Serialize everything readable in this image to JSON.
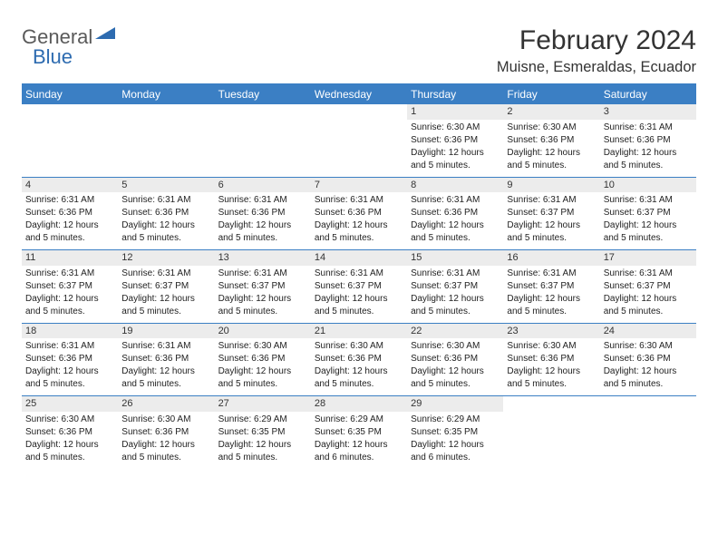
{
  "logo": {
    "text1": "General",
    "text2": "Blue"
  },
  "title": "February 2024",
  "location": "Muisne, Esmeraldas, Ecuador",
  "colors": {
    "brand_blue": "#3b7fc4",
    "header_bg": "#3b7fc4",
    "header_text": "#ffffff",
    "daynum_bg": "#ececec",
    "body_text": "#222222",
    "logo_gray": "#5a5a5a",
    "logo_blue": "#2d6bb0"
  },
  "day_names": [
    "Sunday",
    "Monday",
    "Tuesday",
    "Wednesday",
    "Thursday",
    "Friday",
    "Saturday"
  ],
  "weeks": [
    {
      "nums": [
        "",
        "",
        "",
        "",
        "1",
        "2",
        "3"
      ],
      "details": [
        "",
        "",
        "",
        "",
        "Sunrise: 6:30 AM\nSunset: 6:36 PM\nDaylight: 12 hours and 5 minutes.",
        "Sunrise: 6:30 AM\nSunset: 6:36 PM\nDaylight: 12 hours and 5 minutes.",
        "Sunrise: 6:31 AM\nSunset: 6:36 PM\nDaylight: 12 hours and 5 minutes."
      ]
    },
    {
      "nums": [
        "4",
        "5",
        "6",
        "7",
        "8",
        "9",
        "10"
      ],
      "details": [
        "Sunrise: 6:31 AM\nSunset: 6:36 PM\nDaylight: 12 hours and 5 minutes.",
        "Sunrise: 6:31 AM\nSunset: 6:36 PM\nDaylight: 12 hours and 5 minutes.",
        "Sunrise: 6:31 AM\nSunset: 6:36 PM\nDaylight: 12 hours and 5 minutes.",
        "Sunrise: 6:31 AM\nSunset: 6:36 PM\nDaylight: 12 hours and 5 minutes.",
        "Sunrise: 6:31 AM\nSunset: 6:36 PM\nDaylight: 12 hours and 5 minutes.",
        "Sunrise: 6:31 AM\nSunset: 6:37 PM\nDaylight: 12 hours and 5 minutes.",
        "Sunrise: 6:31 AM\nSunset: 6:37 PM\nDaylight: 12 hours and 5 minutes."
      ]
    },
    {
      "nums": [
        "11",
        "12",
        "13",
        "14",
        "15",
        "16",
        "17"
      ],
      "details": [
        "Sunrise: 6:31 AM\nSunset: 6:37 PM\nDaylight: 12 hours and 5 minutes.",
        "Sunrise: 6:31 AM\nSunset: 6:37 PM\nDaylight: 12 hours and 5 minutes.",
        "Sunrise: 6:31 AM\nSunset: 6:37 PM\nDaylight: 12 hours and 5 minutes.",
        "Sunrise: 6:31 AM\nSunset: 6:37 PM\nDaylight: 12 hours and 5 minutes.",
        "Sunrise: 6:31 AM\nSunset: 6:37 PM\nDaylight: 12 hours and 5 minutes.",
        "Sunrise: 6:31 AM\nSunset: 6:37 PM\nDaylight: 12 hours and 5 minutes.",
        "Sunrise: 6:31 AM\nSunset: 6:37 PM\nDaylight: 12 hours and 5 minutes."
      ]
    },
    {
      "nums": [
        "18",
        "19",
        "20",
        "21",
        "22",
        "23",
        "24"
      ],
      "details": [
        "Sunrise: 6:31 AM\nSunset: 6:36 PM\nDaylight: 12 hours and 5 minutes.",
        "Sunrise: 6:31 AM\nSunset: 6:36 PM\nDaylight: 12 hours and 5 minutes.",
        "Sunrise: 6:30 AM\nSunset: 6:36 PM\nDaylight: 12 hours and 5 minutes.",
        "Sunrise: 6:30 AM\nSunset: 6:36 PM\nDaylight: 12 hours and 5 minutes.",
        "Sunrise: 6:30 AM\nSunset: 6:36 PM\nDaylight: 12 hours and 5 minutes.",
        "Sunrise: 6:30 AM\nSunset: 6:36 PM\nDaylight: 12 hours and 5 minutes.",
        "Sunrise: 6:30 AM\nSunset: 6:36 PM\nDaylight: 12 hours and 5 minutes."
      ]
    },
    {
      "nums": [
        "25",
        "26",
        "27",
        "28",
        "29",
        "",
        ""
      ],
      "details": [
        "Sunrise: 6:30 AM\nSunset: 6:36 PM\nDaylight: 12 hours and 5 minutes.",
        "Sunrise: 6:30 AM\nSunset: 6:36 PM\nDaylight: 12 hours and 5 minutes.",
        "Sunrise: 6:29 AM\nSunset: 6:35 PM\nDaylight: 12 hours and 5 minutes.",
        "Sunrise: 6:29 AM\nSunset: 6:35 PM\nDaylight: 12 hours and 6 minutes.",
        "Sunrise: 6:29 AM\nSunset: 6:35 PM\nDaylight: 12 hours and 6 minutes.",
        "",
        ""
      ]
    }
  ]
}
